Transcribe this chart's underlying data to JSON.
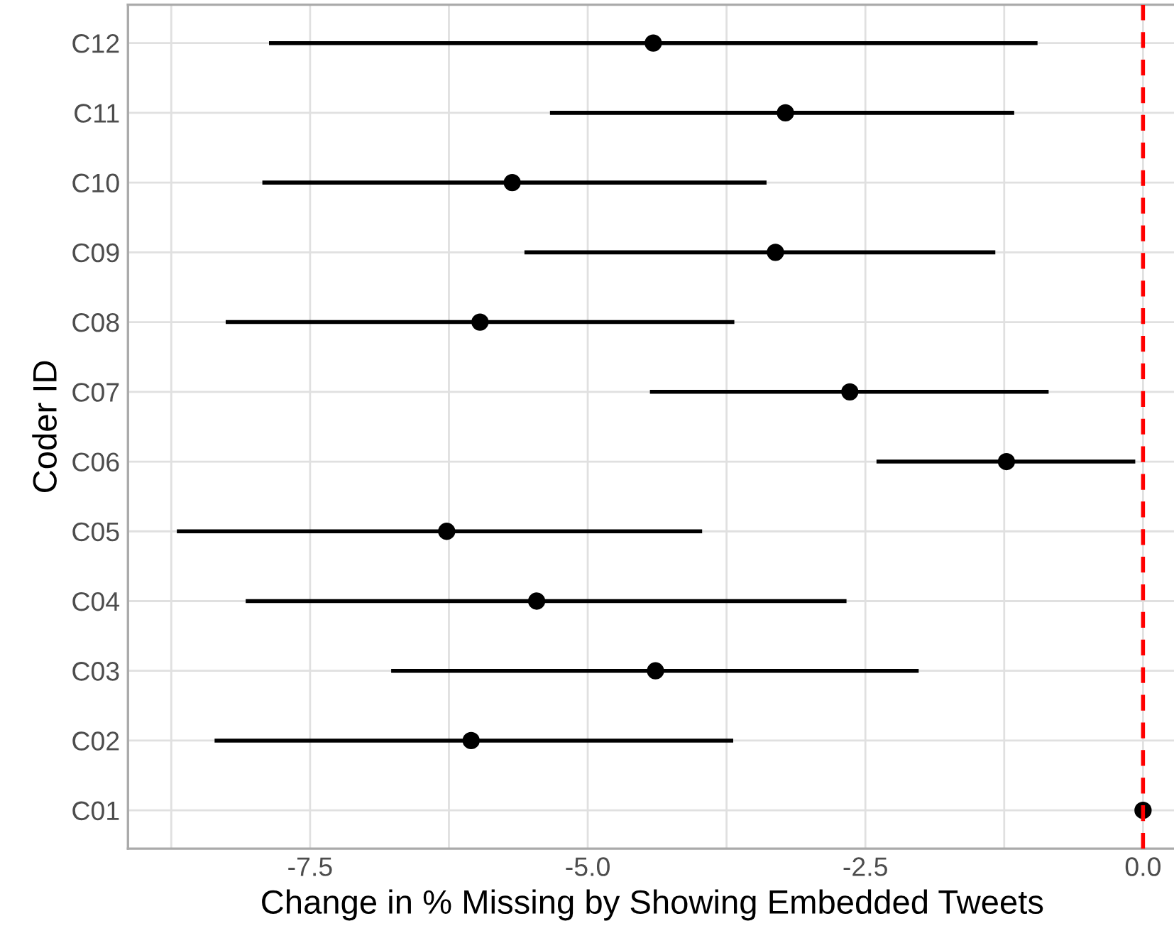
{
  "chart_data": {
    "type": "scatter",
    "orientation": "horizontal",
    "xlabel": "Change in % Missing by Showing Embedded Tweets",
    "ylabel": "Coder ID",
    "categories": [
      "C12",
      "C11",
      "C10",
      "C09",
      "C08",
      "C07",
      "C06",
      "C05",
      "C04",
      "C03",
      "C02",
      "C01"
    ],
    "series": [
      {
        "color": "#000000",
        "values": [
          -4.41,
          -3.22,
          -5.68,
          -3.31,
          -5.97,
          -2.64,
          -1.23,
          -6.27,
          -5.46,
          -4.39,
          -6.05,
          0
        ],
        "errors": [
          [
            -7.87,
            -0.95
          ],
          [
            -5.34,
            -1.16
          ],
          [
            -7.93,
            -3.39
          ],
          [
            -5.57,
            -1.33
          ],
          [
            -8.26,
            -3.68
          ],
          [
            -4.44,
            -0.85
          ],
          [
            -2.4,
            -0.07
          ],
          [
            -8.7,
            -3.97
          ],
          [
            -8.08,
            -2.67
          ],
          [
            -6.77,
            -2.02
          ],
          [
            -8.36,
            -3.69
          ],
          null
        ]
      }
    ],
    "xlim": [
      -9.14,
      0.3
    ],
    "xticks": [
      {
        "value": -8.75,
        "label": null
      },
      -7.5,
      {
        "value": -6.25,
        "label": null
      },
      {
        "value": -5.0,
        "label": "-5.0"
      },
      {
        "value": -3.75,
        "label": null
      },
      -2.5,
      {
        "value": -1.25,
        "label": null
      },
      {
        "value": 0.0,
        "label": "0.0"
      }
    ],
    "ref_lines": [
      {
        "axis": "x",
        "value": 0,
        "color": "#ff0000",
        "line_style": "dashed"
      }
    ],
    "marker": "circle",
    "grid": true
  }
}
